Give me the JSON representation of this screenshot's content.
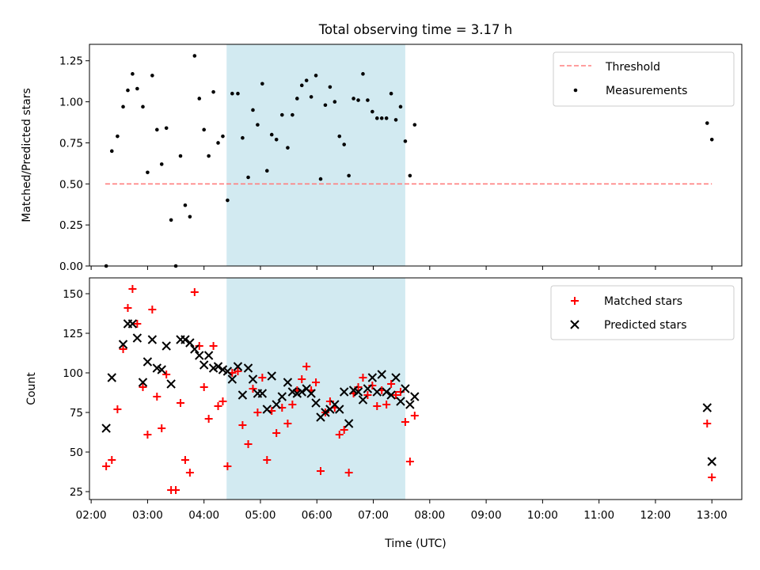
{
  "figure": {
    "title": "Total observing time = 3.17 h"
  },
  "chart_data": [
    {
      "type": "scatter",
      "ylabel": "Matched/Predicted stars",
      "xlabel": "",
      "xlim_hours": [
        1.97,
        13.53
      ],
      "ylim": [
        0,
        1.35
      ],
      "yticks": [
        "0.00",
        "0.25",
        "0.50",
        "0.75",
        "1.00",
        "1.25"
      ],
      "shaded_span": {
        "start": "04:24",
        "end": "07:34",
        "color": "#add8e6"
      },
      "legend": {
        "placement": "top-right",
        "entries": [
          {
            "label": "Threshold",
            "marker": "dashed-line",
            "color": "#ff7f7f"
          },
          {
            "label": "Measurements",
            "marker": "dot",
            "color": "#000000"
          }
        ]
      },
      "threshold": {
        "value": 0.5,
        "x_start": "02:15",
        "x_end": "13:00"
      },
      "series": [
        {
          "name": "Measurements",
          "color": "#000000",
          "points": [
            [
              "02:16",
              0.0
            ],
            [
              "02:22",
              0.7
            ],
            [
              "02:28",
              0.79
            ],
            [
              "02:34",
              0.97
            ],
            [
              "02:39",
              1.07
            ],
            [
              "02:44",
              1.17
            ],
            [
              "02:49",
              1.08
            ],
            [
              "02:55",
              0.97
            ],
            [
              "03:00",
              0.57
            ],
            [
              "03:05",
              1.16
            ],
            [
              "03:10",
              0.83
            ],
            [
              "03:15",
              0.62
            ],
            [
              "03:20",
              0.84
            ],
            [
              "03:25",
              0.28
            ],
            [
              "03:30",
              0.0
            ],
            [
              "03:35",
              0.67
            ],
            [
              "03:40",
              0.37
            ],
            [
              "03:45",
              0.3
            ],
            [
              "03:50",
              1.28
            ],
            [
              "03:55",
              1.02
            ],
            [
              "04:00",
              0.83
            ],
            [
              "04:05",
              0.67
            ],
            [
              "04:10",
              1.06
            ],
            [
              "04:15",
              0.75
            ],
            [
              "04:20",
              0.79
            ],
            [
              "04:25",
              0.4
            ],
            [
              "04:30",
              1.05
            ],
            [
              "04:36",
              1.05
            ],
            [
              "04:41",
              0.78
            ],
            [
              "04:47",
              0.54
            ],
            [
              "04:52",
              0.95
            ],
            [
              "04:57",
              0.86
            ],
            [
              "05:02",
              1.11
            ],
            [
              "05:07",
              0.58
            ],
            [
              "05:12",
              0.8
            ],
            [
              "05:17",
              0.77
            ],
            [
              "05:23",
              0.92
            ],
            [
              "05:29",
              0.72
            ],
            [
              "05:34",
              0.92
            ],
            [
              "05:39",
              1.02
            ],
            [
              "05:44",
              1.1
            ],
            [
              "05:49",
              1.13
            ],
            [
              "05:54",
              1.03
            ],
            [
              "05:59",
              1.16
            ],
            [
              "06:04",
              0.53
            ],
            [
              "06:09",
              0.98
            ],
            [
              "06:14",
              1.09
            ],
            [
              "06:19",
              1.0
            ],
            [
              "06:24",
              0.79
            ],
            [
              "06:29",
              0.74
            ],
            [
              "06:34",
              0.55
            ],
            [
              "06:39",
              1.02
            ],
            [
              "06:44",
              1.01
            ],
            [
              "06:49",
              1.17
            ],
            [
              "06:54",
              1.01
            ],
            [
              "06:59",
              0.94
            ],
            [
              "07:04",
              0.9
            ],
            [
              "07:09",
              0.9
            ],
            [
              "07:14",
              0.9
            ],
            [
              "07:19",
              1.05
            ],
            [
              "07:24",
              0.89
            ],
            [
              "07:29",
              0.97
            ],
            [
              "07:34",
              0.76
            ],
            [
              "07:39",
              0.55
            ],
            [
              "07:44",
              0.86
            ],
            [
              "12:55",
              0.87
            ],
            [
              "13:00",
              0.77
            ]
          ]
        }
      ]
    },
    {
      "type": "scatter",
      "ylabel": "Count",
      "xlabel": "Time (UTC)",
      "xlim_hours": [
        1.97,
        13.53
      ],
      "ylim": [
        20,
        160
      ],
      "yticks": [
        "25",
        "50",
        "75",
        "100",
        "125",
        "150"
      ],
      "xticks": [
        "02:00",
        "03:00",
        "04:00",
        "05:00",
        "06:00",
        "07:00",
        "08:00",
        "09:00",
        "10:00",
        "11:00",
        "12:00",
        "13:00"
      ],
      "shaded_span": {
        "start": "04:24",
        "end": "07:34",
        "color": "#add8e6"
      },
      "legend": {
        "placement": "top-right",
        "entries": [
          {
            "label": "Matched stars",
            "marker": "plus",
            "color": "#ff0000"
          },
          {
            "label": "Predicted stars",
            "marker": "x",
            "color": "#000000"
          }
        ]
      },
      "series": [
        {
          "name": "Matched stars",
          "color": "#ff0000",
          "marker": "plus",
          "points": [
            [
              "02:16",
              41
            ],
            [
              "02:22",
              45
            ],
            [
              "02:28",
              77
            ],
            [
              "02:34",
              115
            ],
            [
              "02:39",
              141
            ],
            [
              "02:44",
              153
            ],
            [
              "02:49",
              131
            ],
            [
              "02:55",
              91
            ],
            [
              "03:00",
              61
            ],
            [
              "03:05",
              140
            ],
            [
              "03:10",
              85
            ],
            [
              "03:15",
              65
            ],
            [
              "03:20",
              99
            ],
            [
              "03:25",
              26
            ],
            [
              "03:30",
              26
            ],
            [
              "03:35",
              81
            ],
            [
              "03:40",
              45
            ],
            [
              "03:45",
              37
            ],
            [
              "03:50",
              151
            ],
            [
              "03:55",
              117
            ],
            [
              "04:00",
              91
            ],
            [
              "04:05",
              71
            ],
            [
              "04:10",
              117
            ],
            [
              "04:15",
              79
            ],
            [
              "04:20",
              82
            ],
            [
              "04:25",
              41
            ],
            [
              "04:30",
              100
            ],
            [
              "04:36",
              101
            ],
            [
              "04:41",
              67
            ],
            [
              "04:47",
              55
            ],
            [
              "04:52",
              90
            ],
            [
              "04:57",
              75
            ],
            [
              "05:02",
              97
            ],
            [
              "05:07",
              45
            ],
            [
              "05:12",
              76
            ],
            [
              "05:17",
              62
            ],
            [
              "05:23",
              78
            ],
            [
              "05:29",
              68
            ],
            [
              "05:34",
              80
            ],
            [
              "05:39",
              89
            ],
            [
              "05:44",
              96
            ],
            [
              "05:49",
              104
            ],
            [
              "05:54",
              89
            ],
            [
              "05:59",
              94
            ],
            [
              "06:04",
              38
            ],
            [
              "06:09",
              75
            ],
            [
              "06:14",
              82
            ],
            [
              "06:19",
              78
            ],
            [
              "06:24",
              61
            ],
            [
              "06:29",
              64
            ],
            [
              "06:34",
              37
            ],
            [
              "06:39",
              87
            ],
            [
              "06:44",
              91
            ],
            [
              "06:49",
              97
            ],
            [
              "06:54",
              86
            ],
            [
              "06:59",
              92
            ],
            [
              "07:04",
              79
            ],
            [
              "07:09",
              89
            ],
            [
              "07:14",
              80
            ],
            [
              "07:19",
              93
            ],
            [
              "07:24",
              86
            ],
            [
              "07:29",
              88
            ],
            [
              "07:34",
              69
            ],
            [
              "07:39",
              44
            ],
            [
              "07:44",
              73
            ],
            [
              "12:55",
              68
            ],
            [
              "13:00",
              34
            ]
          ]
        },
        {
          "name": "Predicted stars",
          "color": "#000000",
          "marker": "x",
          "points": [
            [
              "02:16",
              65
            ],
            [
              "02:22",
              97
            ],
            [
              "02:34",
              118
            ],
            [
              "02:39",
              131
            ],
            [
              "02:44",
              131
            ],
            [
              "02:49",
              122
            ],
            [
              "02:55",
              94
            ],
            [
              "03:00",
              107
            ],
            [
              "03:05",
              121
            ],
            [
              "03:10",
              103
            ],
            [
              "03:15",
              102
            ],
            [
              "03:20",
              117
            ],
            [
              "03:25",
              93
            ],
            [
              "03:35",
              121
            ],
            [
              "03:40",
              121
            ],
            [
              "03:45",
              119
            ],
            [
              "03:50",
              115
            ],
            [
              "03:55",
              111
            ],
            [
              "04:00",
              105
            ],
            [
              "04:05",
              111
            ],
            [
              "04:10",
              103
            ],
            [
              "04:15",
              104
            ],
            [
              "04:20",
              102
            ],
            [
              "04:25",
              101
            ],
            [
              "04:30",
              96
            ],
            [
              "04:36",
              104
            ],
            [
              "04:41",
              86
            ],
            [
              "04:47",
              103
            ],
            [
              "04:52",
              96
            ],
            [
              "04:57",
              87
            ],
            [
              "05:02",
              87
            ],
            [
              "05:07",
              77
            ],
            [
              "05:12",
              98
            ],
            [
              "05:17",
              80
            ],
            [
              "05:23",
              85
            ],
            [
              "05:29",
              94
            ],
            [
              "05:34",
              88
            ],
            [
              "05:39",
              87
            ],
            [
              "05:44",
              88
            ],
            [
              "05:49",
              90
            ],
            [
              "05:54",
              87
            ],
            [
              "05:59",
              81
            ],
            [
              "06:04",
              72
            ],
            [
              "06:09",
              75
            ],
            [
              "06:14",
              77
            ],
            [
              "06:19",
              80
            ],
            [
              "06:24",
              77
            ],
            [
              "06:29",
              88
            ],
            [
              "06:34",
              68
            ],
            [
              "06:39",
              89
            ],
            [
              "06:44",
              88
            ],
            [
              "06:49",
              83
            ],
            [
              "06:54",
              90
            ],
            [
              "06:59",
              97
            ],
            [
              "07:04",
              88
            ],
            [
              "07:09",
              99
            ],
            [
              "07:14",
              88
            ],
            [
              "07:19",
              86
            ],
            [
              "07:24",
              97
            ],
            [
              "07:29",
              82
            ],
            [
              "07:34",
              90
            ],
            [
              "07:39",
              80
            ],
            [
              "07:44",
              85
            ],
            [
              "12:55",
              78
            ],
            [
              "13:00",
              44
            ]
          ]
        }
      ]
    }
  ]
}
